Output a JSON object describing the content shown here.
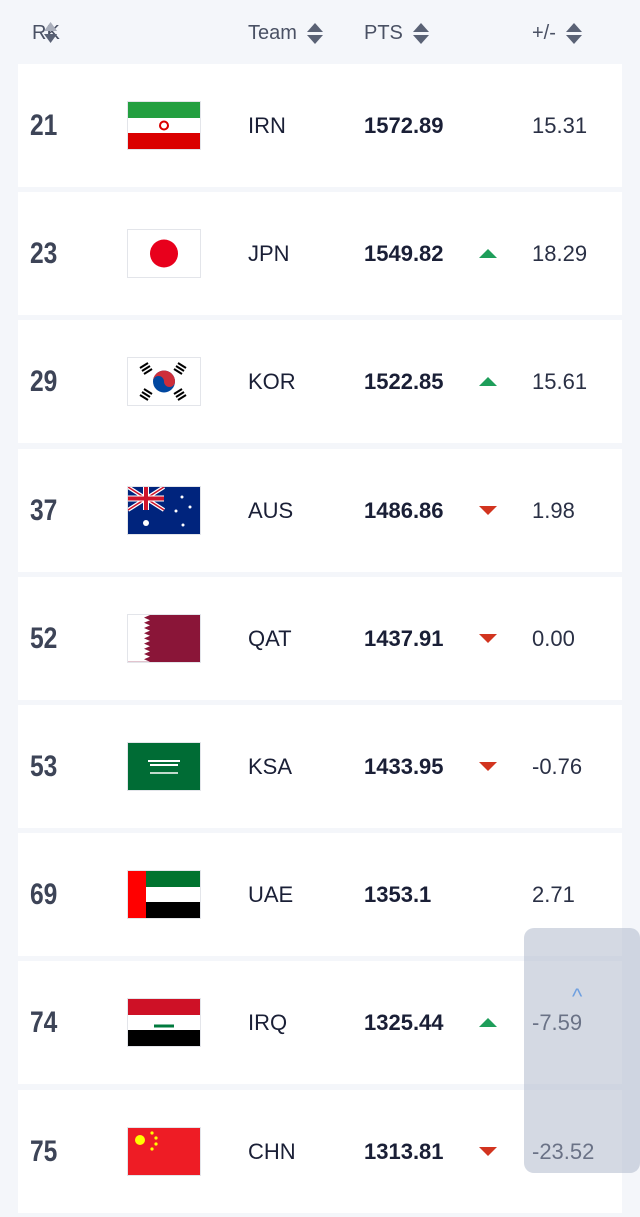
{
  "header": {
    "rank": "RK",
    "team": "Team",
    "points": "PTS",
    "change": "+/-"
  },
  "colors": {
    "up": "#1e9e5a",
    "down": "#d2341f"
  },
  "rows": [
    {
      "rank": "21",
      "flag": "iran-flag",
      "team": "IRN",
      "points": "1572.89",
      "trend": "none",
      "change": "15.31"
    },
    {
      "rank": "23",
      "flag": "japan-flag",
      "team": "JPN",
      "points": "1549.82",
      "trend": "up",
      "change": "18.29"
    },
    {
      "rank": "29",
      "flag": "korea-flag",
      "team": "KOR",
      "points": "1522.85",
      "trend": "up",
      "change": "15.61"
    },
    {
      "rank": "37",
      "flag": "australia-flag",
      "team": "AUS",
      "points": "1486.86",
      "trend": "down",
      "change": "1.98"
    },
    {
      "rank": "52",
      "flag": "qatar-flag",
      "team": "QAT",
      "points": "1437.91",
      "trend": "down",
      "change": "0.00"
    },
    {
      "rank": "53",
      "flag": "saudi-flag",
      "team": "KSA",
      "points": "1433.95",
      "trend": "down",
      "change": "-0.76"
    },
    {
      "rank": "69",
      "flag": "uae-flag",
      "team": "UAE",
      "points": "1353.1",
      "trend": "none",
      "change": "2.71"
    },
    {
      "rank": "74",
      "flag": "iraq-flag",
      "team": "IRQ",
      "points": "1325.44",
      "trend": "up",
      "change": "-7.59"
    },
    {
      "rank": "75",
      "flag": "china-flag",
      "team": "CHN",
      "points": "1313.81",
      "trend": "down",
      "change": "-23.52"
    }
  ],
  "overlay": {
    "icon": "chevron-up-icon",
    "glyph": "^"
  }
}
